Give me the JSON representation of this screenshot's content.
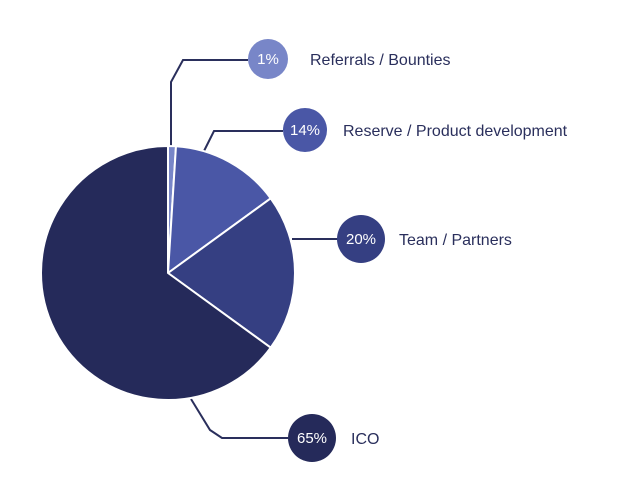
{
  "chart_data": {
    "type": "pie",
    "start_angle_deg": 0,
    "direction": "clockwise",
    "slices": [
      {
        "label": "Referrals / Bounties",
        "value": 1,
        "display": "1%",
        "color": "#7886c8"
      },
      {
        "label": "Reserve / Product development",
        "value": 14,
        "display": "14%",
        "color": "#4a57a6"
      },
      {
        "label": "Team / Partners",
        "value": 20,
        "display": "20%",
        "color": "#353f82"
      },
      {
        "label": "ICO",
        "value": 65,
        "display": "65%",
        "color": "#252a5a"
      }
    ],
    "leader_color": "#2a2f5c",
    "slice_border": "#ffffff",
    "title": "",
    "legend": "none"
  }
}
